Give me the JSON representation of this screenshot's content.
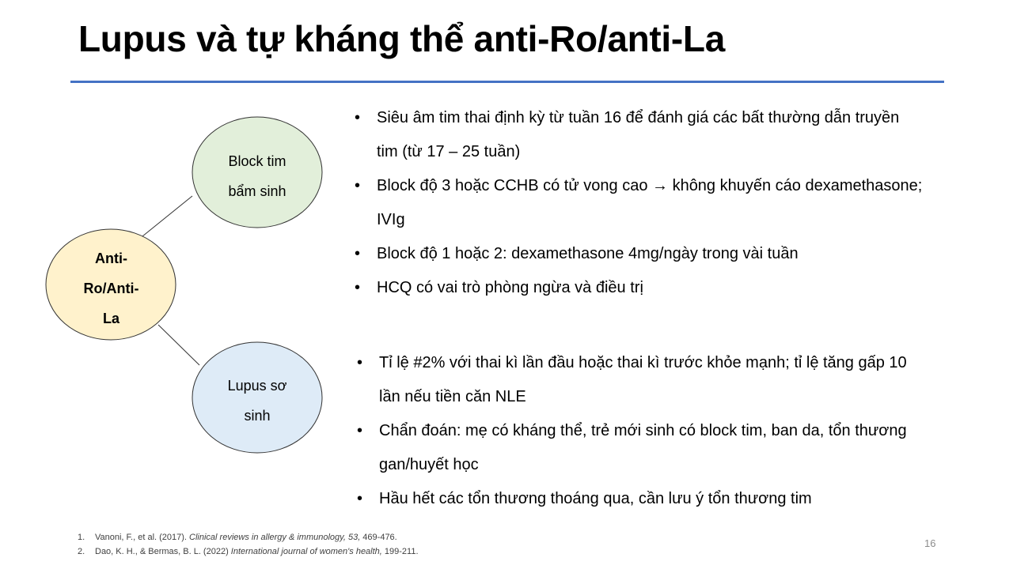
{
  "title": "Lupus và tự kháng thể anti-Ro/anti-La",
  "diagram": {
    "center": {
      "lines": [
        "Anti-",
        "Ro/Anti-",
        "La"
      ],
      "fill": "#fff2cc"
    },
    "top": {
      "lines": [
        "Block tim",
        "bẩm sinh"
      ],
      "fill": "#e2efda"
    },
    "bottom": {
      "lines": [
        "Lupus sơ",
        "sinh"
      ],
      "fill": "#deebf7"
    }
  },
  "bullets_top": [
    "Siêu âm tim thai định kỳ từ tuần 16 để đánh giá các bất thường dẫn truyền tim (từ 17 – 25 tuần)",
    "Block độ 3 hoặc CCHB có tử vong cao → không khuyến cáo dexamethasone; IVIg",
    "Block độ 1 hoặc 2: dexamethasone 4mg/ngày trong vài tuần",
    "HCQ có vai trò phòng ngừa và điều trị"
  ],
  "bullets_bottom": [
    "Tỉ lệ #2% với  thai kì lần đầu hoặc thai kì trước khỏe mạnh; tỉ lệ tăng gấp 10 lần nếu tiền căn NLE",
    "Chẩn đoán: mẹ có kháng thể, trẻ mới sinh có block tim, ban da, tổn thương gan/huyết học",
    "Hầu hết các tổn thương thoáng qua, cần lưu ý tổn thương tim"
  ],
  "references": [
    {
      "num": "1.",
      "pre": "Vanoni, F., et al. (2017). ",
      "journal": "Clinical reviews in allergy & immunology, 53,",
      "post": " 469-476."
    },
    {
      "num": "2.",
      "pre": "Dao, K. H., & Bermas, B. L. (2022) ",
      "journal": "International journal of women's health,",
      "post": " 199-211."
    }
  ],
  "page_number": "16",
  "accent_color": "#4472c4"
}
